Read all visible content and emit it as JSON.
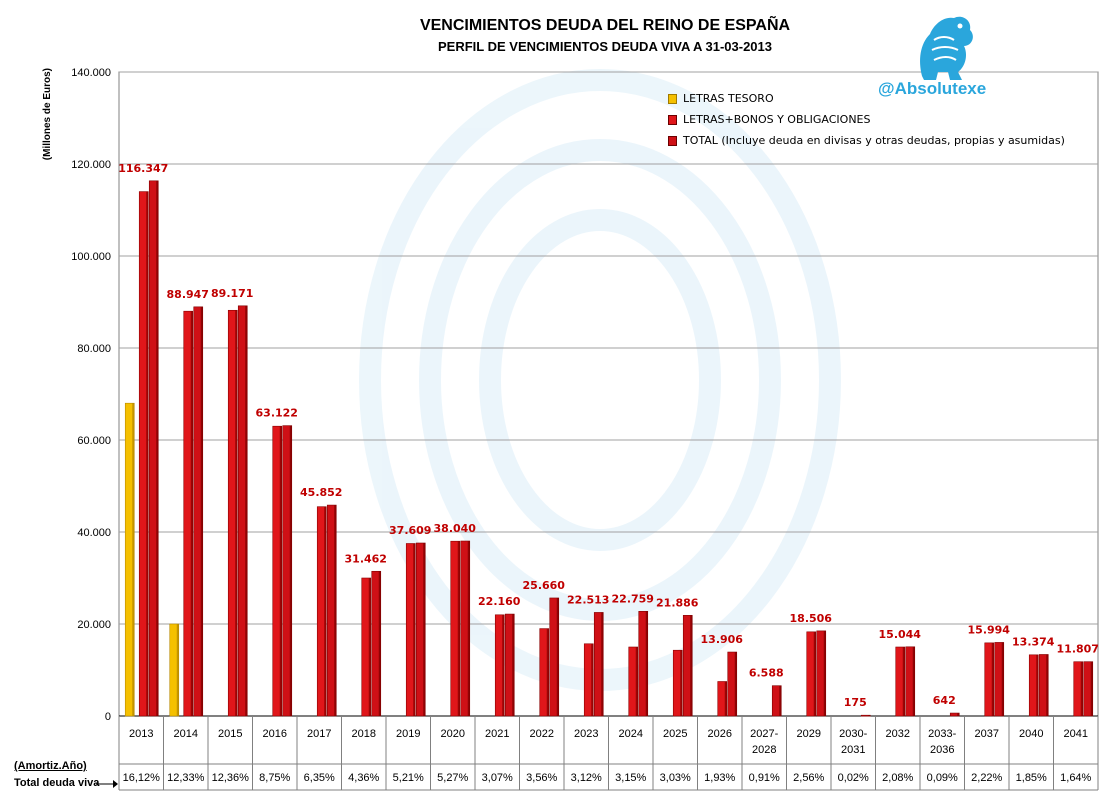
{
  "header": {
    "title": "VENCIMIENTOS DEUDA DEL REINO DE ESPAÑA",
    "subtitle": "PERFIL DE VENCIMIENTOS DEUDA VIVA A 31-03-2013",
    "brand": "@Absolutexe"
  },
  "row_labels": {
    "amortiz": "(Amortiz.Año)",
    "total": "Total deuda viva"
  },
  "colors": {
    "letras_tesoro": "#f5c000",
    "bonos": "#e0161a",
    "total": "#cf1016",
    "value_label": "#c00000",
    "gridline": "#a0a0a0",
    "watermark": "#dceef8"
  },
  "chart_data": {
    "type": "bar",
    "title": "VENCIMIENTOS DEUDA DEL REINO DE ESPAÑA",
    "subtitle": "PERFIL DE VENCIMIENTOS DEUDA VIVA A 31-03-2013",
    "ylabel": "(Millones de Euros)",
    "ylim": [
      0,
      140000
    ],
    "yticks": [
      "0",
      "20.000",
      "40.000",
      "60.000",
      "80.000",
      "100.000",
      "120.000",
      "140.000"
    ],
    "grid": true,
    "legend_position": "top-right",
    "categories": [
      "2013",
      "2014",
      "2015",
      "2016",
      "2017",
      "2018",
      "2019",
      "2020",
      "2021",
      "2022",
      "2023",
      "2024",
      "2025",
      "2026",
      "2027-2028",
      "2029",
      "2030-2031",
      "2032",
      "2033-2036",
      "2037",
      "2040",
      "2041"
    ],
    "series": [
      {
        "name": "LETRAS TESORO",
        "values": [
          68000,
          20000,
          null,
          null,
          null,
          null,
          null,
          null,
          null,
          null,
          null,
          null,
          null,
          null,
          null,
          null,
          null,
          null,
          null,
          null,
          null,
          null
        ]
      },
      {
        "name": "LETRAS+BONOS Y OBLIGACIONES",
        "values": [
          114000,
          88000,
          88200,
          63000,
          45500,
          30000,
          37500,
          38000,
          22000,
          19000,
          15700,
          15000,
          14300,
          7500,
          null,
          18300,
          null,
          15000,
          null,
          15900,
          13300,
          11800
        ]
      },
      {
        "name": "TOTAL (Incluye deuda en divisas y otras deudas, propias y asumidas)",
        "values": [
          116347,
          88947,
          89171,
          63122,
          45852,
          31462,
          37609,
          38040,
          22160,
          25660,
          22513,
          22759,
          21886,
          13906,
          6588,
          18506,
          175,
          15044,
          642,
          15994,
          13374,
          11807
        ]
      }
    ],
    "data_labels": [
      "116.347",
      "88.947",
      "89.171",
      "63.122",
      "45.852",
      "31.462",
      "37.609",
      "38.040",
      "22.160",
      "25.660",
      "22.513",
      "22.759",
      "21.886",
      "13.906",
      "6.588",
      "18.506",
      "175",
      "15.044",
      "642",
      "15.994",
      "13.374",
      "11.807"
    ],
    "pct_total": [
      "16,12%",
      "12,33%",
      "12,36%",
      "8,75%",
      "6,35%",
      "4,36%",
      "5,21%",
      "5,27%",
      "3,07%",
      "3,56%",
      "3,12%",
      "3,15%",
      "3,03%",
      "1,93%",
      "0,91%",
      "2,56%",
      "0,02%",
      "2,08%",
      "0,09%",
      "2,22%",
      "1,85%",
      "1,64%"
    ]
  }
}
